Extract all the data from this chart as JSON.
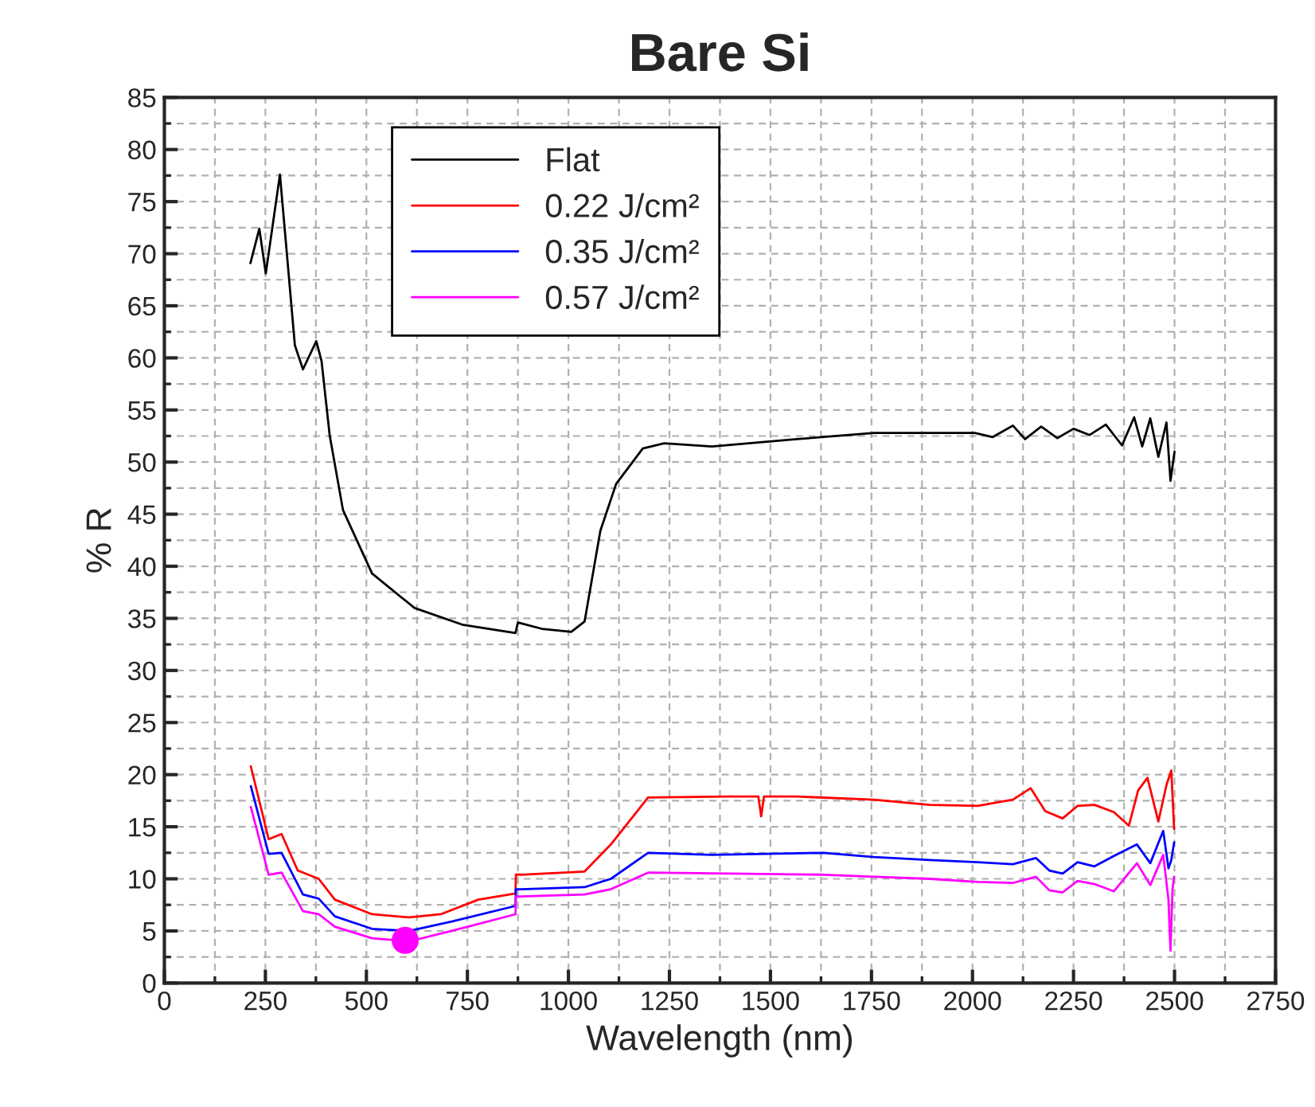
{
  "chart_data": {
    "type": "line",
    "title": "Bare Si",
    "xlabel": "Wavelength (nm)",
    "ylabel": "% R",
    "xlim": [
      0,
      2750
    ],
    "xticks": [
      0,
      250,
      500,
      750,
      1000,
      1250,
      1500,
      1750,
      2000,
      2250,
      2500,
      2750
    ],
    "ylim": [
      0,
      85
    ],
    "yticks": [
      0,
      5,
      10,
      15,
      20,
      25,
      30,
      35,
      40,
      45,
      50,
      55,
      60,
      65,
      70,
      75,
      80,
      85
    ],
    "grid": true,
    "legend": "top left",
    "marker": "none",
    "line_style": "solid",
    "series": [
      {
        "name": "Flat",
        "color": "#000000",
        "x": [
          213,
          235,
          251,
          286,
          323,
          343,
          376,
          389,
          409,
          442,
          514,
          619,
          737,
          869,
          875,
          934,
          1007,
          1040,
          1079,
          1118,
          1184,
          1237,
          1355,
          1565,
          1756,
          1881,
          2006,
          2050,
          2100,
          2130,
          2170,
          2210,
          2250,
          2290,
          2330,
          2370,
          2400,
          2420,
          2440,
          2460,
          2480,
          2490,
          2500
        ],
        "values": [
          69.1,
          72.4,
          68.1,
          77.6,
          61.2,
          58.9,
          61.6,
          59.7,
          52.6,
          45.4,
          39.3,
          36.0,
          34.4,
          33.6,
          34.6,
          34.0,
          33.7,
          34.7,
          43.4,
          47.9,
          51.3,
          51.8,
          51.5,
          52.2,
          52.8,
          52.8,
          52.8,
          52.4,
          53.5,
          52.2,
          53.4,
          52.3,
          53.2,
          52.6,
          53.6,
          51.6,
          54.3,
          51.5,
          54.2,
          50.5,
          53.8,
          48.2,
          51.0
        ]
      },
      {
        "name": "0.22 J/cm²",
        "color": "#ff0000",
        "x": [
          214,
          258,
          290,
          330,
          382,
          422,
          514,
          606,
          684,
          777,
          869,
          870,
          882,
          1040,
          1105,
          1197,
          1400,
          1470,
          1477,
          1484,
          1565,
          1756,
          1894,
          2013,
          2100,
          2144,
          2180,
          2223,
          2260,
          2302,
          2350,
          2387,
          2410,
          2433,
          2460,
          2480,
          2492,
          2499
        ],
        "values": [
          20.8,
          13.8,
          14.3,
          10.8,
          10.0,
          8.0,
          6.6,
          6.3,
          6.6,
          8.0,
          8.6,
          10.4,
          10.4,
          10.7,
          13.3,
          17.8,
          17.9,
          17.9,
          16.0,
          17.9,
          17.9,
          17.6,
          17.1,
          17.0,
          17.6,
          18.7,
          16.5,
          15.8,
          17.0,
          17.1,
          16.4,
          15.1,
          18.5,
          19.7,
          15.5,
          19.0,
          20.4,
          14.8
        ]
      },
      {
        "name": "0.35 J/cm²",
        "color": "#0000ff",
        "x": [
          214,
          258,
          290,
          343,
          382,
          422,
          514,
          606,
          711,
          869,
          870,
          882,
          1040,
          1105,
          1197,
          1355,
          1631,
          1756,
          1894,
          2013,
          2100,
          2157,
          2190,
          2223,
          2260,
          2302,
          2350,
          2407,
          2440,
          2472,
          2485,
          2492,
          2499
        ],
        "values": [
          18.9,
          12.4,
          12.5,
          8.5,
          8.1,
          6.4,
          5.2,
          5.0,
          5.9,
          7.4,
          9.0,
          9.0,
          9.2,
          10.0,
          12.5,
          12.3,
          12.5,
          12.1,
          11.8,
          11.6,
          11.4,
          12.0,
          10.8,
          10.5,
          11.6,
          11.2,
          12.2,
          13.3,
          11.5,
          14.6,
          11.0,
          11.8,
          13.5
        ]
      },
      {
        "name": "0.57 J/cm²",
        "color": "#ff00ff",
        "x": [
          214,
          258,
          290,
          343,
          382,
          422,
          514,
          606,
          711,
          869,
          870,
          882,
          1040,
          1105,
          1197,
          1631,
          1756,
          1894,
          2013,
          2100,
          2157,
          2190,
          2223,
          2260,
          2302,
          2350,
          2407,
          2440,
          2472,
          2485,
          2490,
          2495,
          2499
        ],
        "values": [
          16.9,
          10.4,
          10.6,
          6.9,
          6.6,
          5.4,
          4.3,
          4.0,
          5.0,
          6.6,
          8.3,
          8.3,
          8.5,
          9.0,
          10.6,
          10.4,
          10.2,
          10.0,
          9.7,
          9.6,
          10.2,
          8.9,
          8.7,
          9.8,
          9.5,
          8.8,
          11.5,
          9.4,
          12.3,
          8.0,
          3.1,
          9.0,
          10.2
        ]
      },
      {
        "type": "scatter",
        "marker": "circle",
        "color": "#ff00ff",
        "x": [
          596
        ],
        "values": [
          4.1
        ]
      }
    ]
  }
}
